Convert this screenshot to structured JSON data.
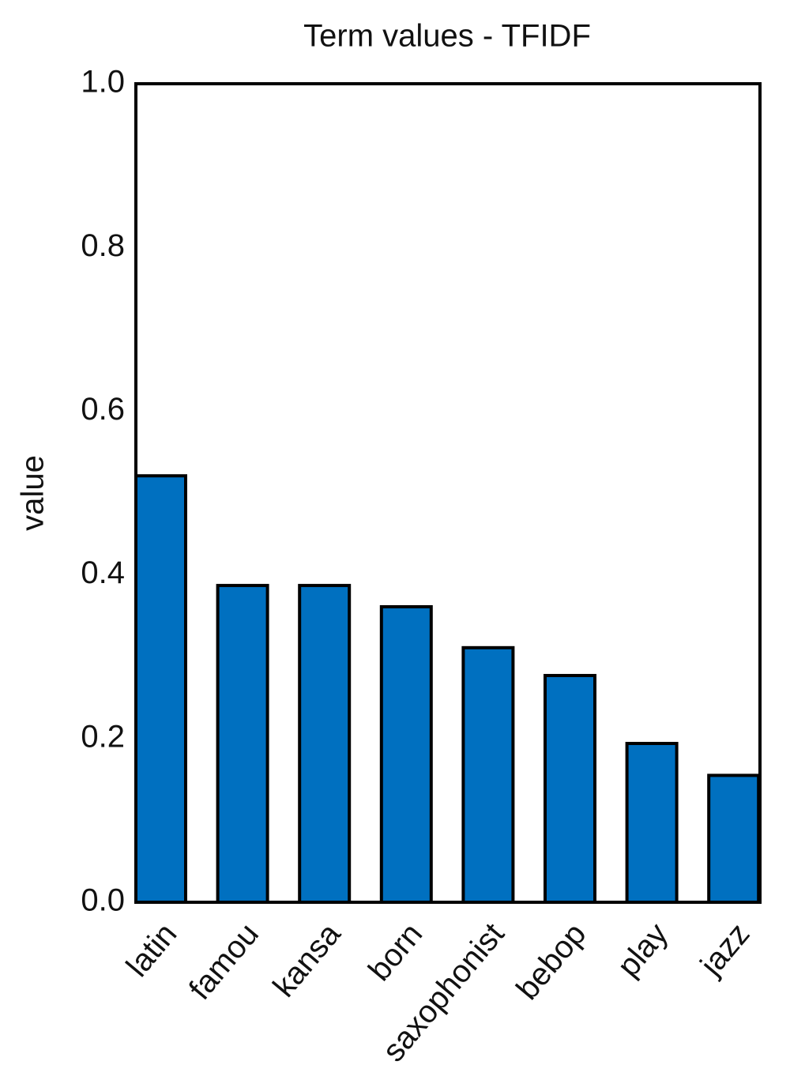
{
  "chart_data": {
    "type": "bar",
    "title": "Term values - TFIDF",
    "ylabel": "value",
    "categories": [
      "latin",
      "famou",
      "kansa",
      "born",
      "saxophonist",
      "bebop",
      "play",
      "jazz"
    ],
    "values": [
      0.521,
      0.387,
      0.387,
      0.361,
      0.311,
      0.277,
      0.194,
      0.155
    ],
    "color": "#0070c0",
    "ylim": [
      0,
      1
    ],
    "yticks": [
      {
        "value": 0,
        "label": "0.0"
      },
      0.2,
      0.4,
      0.6,
      0.8,
      {
        "value": 1,
        "label": "1.0"
      }
    ],
    "grid": false
  }
}
